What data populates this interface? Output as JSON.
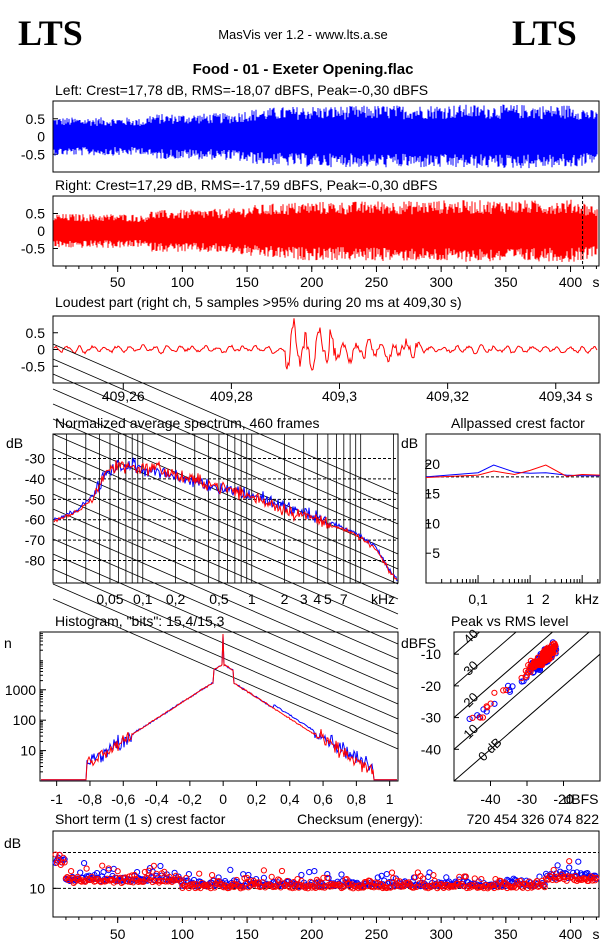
{
  "header": {
    "logo_left": "LTS",
    "logo_right": "LTS",
    "app_title": "MasVis ver 1.2 - www.lts.a.se",
    "file_title": "Food - 01 - Exeter Opening.flac"
  },
  "colors": {
    "left": "#0000ff",
    "right": "#ff0000",
    "axis": "#000000"
  },
  "chart_data": [
    {
      "id": "left-waveform",
      "type": "line",
      "title": "Left: Crest=17,78 dB, RMS=-18,07 dBFS, Peak=-0,30 dBFS",
      "yticks": [
        "0.5",
        "0",
        "-0.5"
      ],
      "ylim": [
        -1,
        1
      ],
      "xlim": [
        0,
        422
      ],
      "series_color": "#0000ff",
      "envelope": {
        "x": [
          0,
          30,
          60,
          70,
          75,
          100,
          140,
          150,
          175,
          200,
          230,
          250,
          280,
          300,
          330,
          350,
          370,
          380,
          400,
          410,
          422
        ],
        "amp": [
          0.55,
          0.55,
          0.55,
          0.5,
          0.65,
          0.65,
          0.68,
          0.78,
          0.85,
          0.88,
          0.88,
          0.9,
          0.9,
          0.92,
          0.92,
          0.92,
          0.92,
          0.9,
          0.92,
          0.85,
          0.7
        ]
      }
    },
    {
      "id": "right-waveform",
      "type": "line",
      "title": "Right: Crest=17,29 dB, RMS=-17,59 dBFS, Peak=-0,30 dBFS",
      "yticks": [
        "0.5",
        "0",
        "-0.5"
      ],
      "ylim": [
        -1,
        1
      ],
      "xlim": [
        0,
        422
      ],
      "series_color": "#ff0000",
      "x_ticks": [
        "50",
        "100",
        "150",
        "200",
        "250",
        "300",
        "350",
        "400",
        "s"
      ],
      "marker_x": 409.3,
      "envelope": {
        "x": [
          0,
          30,
          60,
          70,
          75,
          100,
          140,
          150,
          175,
          200,
          230,
          250,
          280,
          300,
          330,
          350,
          370,
          380,
          400,
          410,
          422
        ],
        "amp": [
          0.5,
          0.5,
          0.5,
          0.45,
          0.6,
          0.62,
          0.66,
          0.74,
          0.82,
          0.86,
          0.86,
          0.88,
          0.88,
          0.9,
          0.9,
          0.9,
          0.9,
          0.88,
          0.92,
          0.85,
          0.7
        ]
      }
    },
    {
      "id": "loudest-part",
      "type": "line",
      "title": "Loudest part (right ch, 5 samples >95% during 20 ms at 409,30 s)",
      "yticks": [
        "0.5",
        "0",
        "-0.5"
      ],
      "ylim": [
        -1,
        1
      ],
      "series_color": "#ff0000",
      "x_ticks": [
        "409,26",
        "409,28",
        "409,3",
        "409,32",
        "409,34 s"
      ],
      "xlim": [
        409.247,
        409.348
      ]
    },
    {
      "id": "avg-spectrum",
      "type": "line",
      "title": "Normalized average spectrum, 460 frames",
      "ylabel": "dB",
      "yticks": [
        "-30",
        "-40",
        "-50",
        "-60",
        "-70",
        "-80"
      ],
      "x_ticks": [
        "0,05",
        "0,1",
        "0,2",
        "0,5",
        "1",
        "2",
        "3",
        "4",
        "5",
        "7",
        "kHz"
      ],
      "xlim_khz": [
        0.015,
        22
      ],
      "ylim": [
        -91,
        -18
      ],
      "series": [
        {
          "name": "",
          "color": "#0000ff",
          "x": [
            0.015,
            0.025,
            0.035,
            0.045,
            0.06,
            0.08,
            0.1,
            0.13,
            0.17,
            0.22,
            0.3,
            0.4,
            0.5,
            0.7,
            1,
            1.5,
            2,
            3,
            4,
            5,
            7,
            10,
            14,
            18,
            22
          ],
          "y": [
            -60,
            -55,
            -48,
            -38,
            -34,
            -33,
            -36,
            -35,
            -38,
            -40,
            -41,
            -43,
            -44,
            -46,
            -48,
            -51,
            -54,
            -57,
            -59,
            -61,
            -64,
            -68,
            -74,
            -84,
            -90
          ]
        },
        {
          "name": "",
          "color": "#ff0000",
          "x": [
            0.015,
            0.025,
            0.035,
            0.045,
            0.06,
            0.08,
            0.1,
            0.13,
            0.17,
            0.22,
            0.3,
            0.4,
            0.5,
            0.7,
            1,
            1.5,
            2,
            3,
            4,
            5,
            7,
            10,
            14,
            18,
            22
          ],
          "y": [
            -61,
            -56,
            -49,
            -37,
            -33,
            -34,
            -35,
            -34,
            -37,
            -39,
            -41,
            -42,
            -44,
            -46,
            -49,
            -52,
            -55,
            -58,
            -60,
            -62,
            -65,
            -69,
            -75,
            -85,
            -90
          ]
        }
      ]
    },
    {
      "id": "allpassed-crest",
      "type": "line",
      "title": "Allpassed crest factor",
      "ylabel": "dB",
      "yticks": [
        "20",
        "15",
        "10",
        "5"
      ],
      "ylim": [
        0,
        25
      ],
      "x_ticks": [
        "0,1",
        "1",
        "2",
        "kHz"
      ],
      "xlim_khz": [
        0.01,
        22
      ],
      "dashed_y": 17.8,
      "series": [
        {
          "name": "",
          "color": "#0000ff",
          "x": [
            0.01,
            0.1,
            0.2,
            0.5,
            1,
            2,
            5,
            10,
            22
          ],
          "y": [
            17.8,
            18.5,
            19.8,
            18.6,
            18.4,
            18.5,
            18.1,
            18.0,
            18.0
          ]
        },
        {
          "name": "",
          "color": "#ff0000",
          "x": [
            0.01,
            0.1,
            0.2,
            0.5,
            1,
            2,
            5,
            10,
            22
          ],
          "y": [
            17.7,
            18.1,
            18.8,
            18.2,
            18.9,
            19.8,
            17.9,
            18.2,
            18.1
          ]
        }
      ]
    },
    {
      "id": "histogram",
      "type": "line",
      "title": "Histogram, \"bits\": 15,4/15,3",
      "ylabel": "n",
      "yticks": [
        "1000",
        "100",
        "10"
      ],
      "x_ticks": [
        "-1",
        "-0,8",
        "-0,6",
        "-0,4",
        "-0,2",
        "0",
        "0,2",
        "0,4",
        "0,6",
        "0,8",
        "1"
      ],
      "xlim": [
        -1.1,
        1.05
      ],
      "ylog_range": [
        0,
        4.9
      ]
    },
    {
      "id": "peak-vs-rms",
      "type": "scatter",
      "title": "Peak vs RMS level",
      "ylabel": "dBFS",
      "xlabel": "dBFS",
      "yticks": [
        "-10",
        "-20",
        "-30",
        "-40"
      ],
      "x_ticks": [
        "-40",
        "-30",
        "-20",
        "dBFS"
      ],
      "xlim": [
        -50,
        -10
      ],
      "ylim": [
        -50,
        -3
      ],
      "diag_labels": [
        "40",
        "30",
        "20",
        "10",
        "0 dB"
      ]
    },
    {
      "id": "short-term-crest",
      "type": "scatter",
      "title": "Short term (1 s) crest factor",
      "checksum_label": "Checksum (energy):",
      "checksum_value": "720 454 326 074 822",
      "ylabel": "dB",
      "yticks": [
        "10"
      ],
      "x_ticks": [
        "50",
        "100",
        "150",
        "200",
        "250",
        "300",
        "350",
        "400",
        "s"
      ],
      "xlim": [
        0,
        422
      ],
      "ylim": [
        2,
        26
      ],
      "dashed_y": [
        10,
        20
      ]
    }
  ]
}
